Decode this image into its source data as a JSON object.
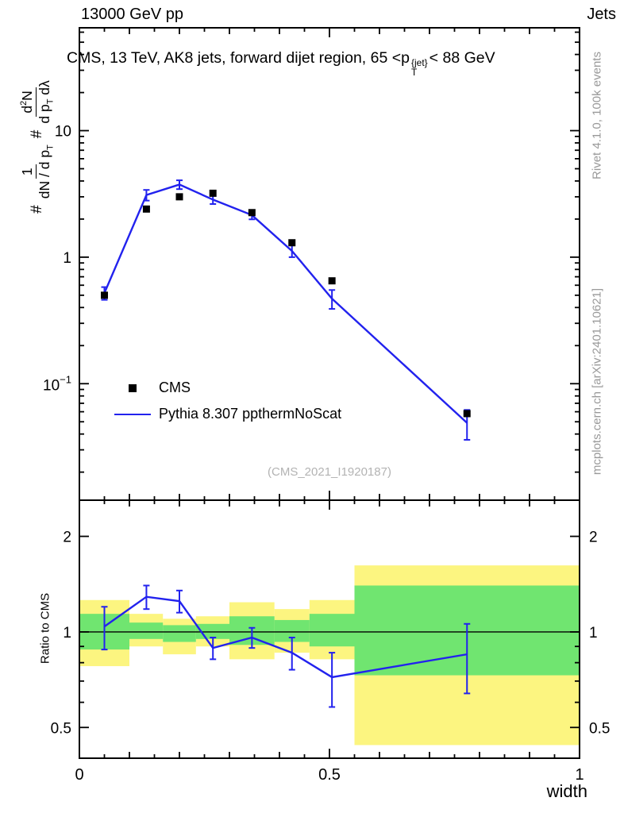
{
  "header": {
    "left": "13000 GeV pp",
    "right": "Jets"
  },
  "panel_title": {
    "pre": "CMS, 13 TeV, AK8 jets, forward dijet region, 65 <p",
    "sup": "{jet}",
    "sub": "T",
    "post": "< 88 GeV"
  },
  "ylabel": {
    "hash1": "#",
    "frac1": {
      "num": "1",
      "den_pre": "dN / d p",
      "den_sub": "T"
    },
    "hash2": "#",
    "frac2": {
      "num_pre": "d",
      "num_sup": "2",
      "num_post": "N",
      "den_pre": "d p",
      "den_sub": "T",
      "den_post": " dλ"
    }
  },
  "legend": [
    {
      "label": "CMS",
      "marker": "square",
      "color": "#000000"
    },
    {
      "label": "Pythia 8.307 ppthermNoScat",
      "marker": "line",
      "color": "#2222ee"
    }
  ],
  "watermark": "(CMS_2021_I1920187)",
  "side_notes": {
    "top": "Rivet 4.1.0, 100k events",
    "bottom": "mcplots.cern.ch [arXiv:2401.10621]"
  },
  "ratio_ylabel": "Ratio to CMS",
  "xlabel": "width",
  "chart_data": [
    {
      "type": "line",
      "panel": "main",
      "title": "CMS, 13 TeV, AK8 jets, forward dijet region, 65 < pT{jet} < 88 GeV",
      "ylabel": "1/(dN/dpT) d2N/(dpT dlambda)",
      "yscale": "log",
      "grid": false,
      "legend_position": "inside-lower-left",
      "xlim": [
        0,
        1
      ],
      "ylim": [
        0.012,
        65
      ],
      "x": [
        0.05,
        0.134,
        0.2,
        0.267,
        0.345,
        0.425,
        0.505,
        0.775
      ],
      "series": [
        {
          "name": "CMS",
          "marker": "square",
          "color": "#000000",
          "values": [
            0.5,
            2.4,
            3.0,
            3.2,
            2.25,
            1.3,
            0.65,
            0.058
          ],
          "errors": [
            0.02,
            0.1,
            0.12,
            0.13,
            0.09,
            0.05,
            0.03,
            0.003
          ]
        },
        {
          "name": "Pythia 8.307 ppthermNoScat",
          "marker": "line",
          "color": "#2222ee",
          "values": [
            0.52,
            3.1,
            3.75,
            2.85,
            2.15,
            1.12,
            0.47,
            0.049
          ],
          "errors": [
            0.06,
            0.3,
            0.3,
            0.22,
            0.16,
            0.12,
            0.08,
            0.013
          ]
        }
      ],
      "yticks": [
        {
          "v": 10,
          "label": "10",
          "exp": ""
        },
        {
          "v": 1,
          "label": "1",
          "exp": ""
        },
        {
          "v": 0.1,
          "label": "10",
          "exp": "-1"
        }
      ],
      "xticks": [
        {
          "v": 0,
          "label": "0"
        },
        {
          "v": 0.5,
          "label": "0.5"
        },
        {
          "v": 1,
          "label": "1"
        }
      ]
    },
    {
      "type": "ratio",
      "panel": "ratio",
      "ylabel": "Ratio to CMS",
      "xlabel": "width",
      "yscale": "log",
      "xlim": [
        0,
        1
      ],
      "ylim": [
        0.4,
        2.6
      ],
      "x": [
        0.05,
        0.134,
        0.2,
        0.267,
        0.345,
        0.425,
        0.505,
        0.775
      ],
      "values": [
        1.04,
        1.29,
        1.25,
        0.89,
        0.96,
        0.86,
        0.72,
        0.85
      ],
      "errors": [
        0.16,
        0.11,
        0.1,
        0.07,
        0.07,
        0.1,
        0.14,
        0.21
      ],
      "refline": 1,
      "bands": {
        "edges": [
          0,
          0.1,
          0.167,
          0.233,
          0.3,
          0.39,
          0.46,
          0.55,
          1.0
        ],
        "yellow": [
          [
            0.78,
            1.26
          ],
          [
            0.9,
            1.14
          ],
          [
            0.85,
            1.1
          ],
          [
            0.9,
            1.12
          ],
          [
            0.82,
            1.24
          ],
          [
            0.86,
            1.18
          ],
          [
            0.82,
            1.26
          ],
          [
            0.44,
            1.62
          ]
        ],
        "green": [
          [
            0.88,
            1.14
          ],
          [
            0.95,
            1.07
          ],
          [
            0.93,
            1.05
          ],
          [
            0.95,
            1.06
          ],
          [
            0.91,
            1.12
          ],
          [
            0.93,
            1.09
          ],
          [
            0.9,
            1.14
          ],
          [
            0.73,
            1.4
          ]
        ]
      },
      "colors": {
        "band_outer": "#fcf580",
        "band_inner": "#70e570",
        "line": "#2222ee",
        "refline": "#000000"
      },
      "yticks": [
        {
          "v": 2,
          "label": "2"
        },
        {
          "v": 1,
          "label": "1"
        },
        {
          "v": 0.5,
          "label": "0.5"
        }
      ],
      "xticks": [
        {
          "v": 0,
          "label": "0"
        },
        {
          "v": 0.5,
          "label": "0.5"
        },
        {
          "v": 1,
          "label": "1"
        }
      ]
    }
  ]
}
